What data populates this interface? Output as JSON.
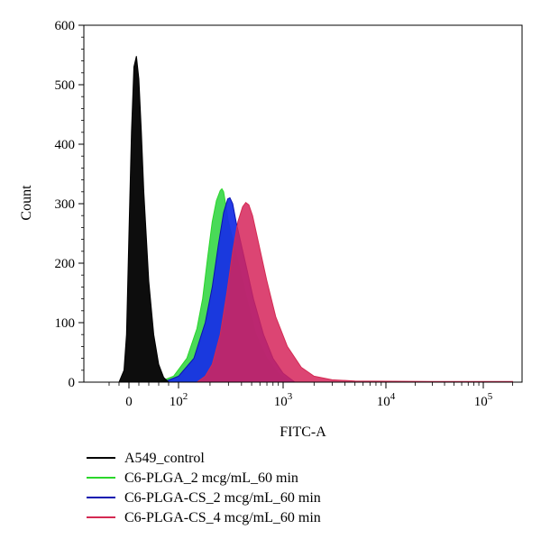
{
  "chart_data": {
    "type": "area",
    "title": "",
    "xlabel": "FITC-A",
    "ylabel": "Count",
    "x_scale": "biexponential (log above 10^2)",
    "ylim": [
      0,
      600
    ],
    "yticks": [
      "0",
      "100",
      "200",
      "300",
      "400",
      "500",
      "600"
    ],
    "xticks": [
      {
        "base": "0",
        "exp": ""
      },
      {
        "base": "10",
        "exp": "2"
      },
      {
        "base": "10",
        "exp": "3"
      },
      {
        "base": "10",
        "exp": "4"
      },
      {
        "base": "10",
        "exp": "5"
      }
    ],
    "grid": false,
    "legend_position": "bottom",
    "series": [
      {
        "name": "A549_control",
        "color": "#000000",
        "fill": "#000000",
        "x": [
          -20,
          -10,
          -5,
          0,
          5,
          10,
          15,
          20,
          25,
          30,
          40,
          50,
          60,
          70,
          80
        ],
        "y": [
          0,
          20,
          80,
          250,
          420,
          530,
          548,
          510,
          420,
          320,
          170,
          80,
          30,
          8,
          0
        ]
      },
      {
        "name": "C6-PLGA_2 mcg/mL_60 min",
        "color": "#2bd62b",
        "fill": "#3fd84f",
        "x": [
          60,
          90,
          120,
          150,
          170,
          190,
          210,
          230,
          250,
          260,
          270,
          285,
          300,
          330,
          380,
          450,
          550,
          700,
          900,
          1200
        ],
        "y": [
          0,
          10,
          40,
          90,
          140,
          210,
          270,
          305,
          322,
          325,
          320,
          295,
          270,
          240,
          195,
          140,
          80,
          40,
          15,
          0
        ]
      },
      {
        "name": "C6-PLGA-CS_2 mcg/mL_60 min",
        "color": "#0a12b0",
        "fill": "#1830e6",
        "x": [
          70,
          100,
          140,
          180,
          210,
          240,
          270,
          295,
          310,
          330,
          355,
          400,
          450,
          520,
          650,
          800,
          1000,
          1300
        ],
        "y": [
          0,
          10,
          40,
          100,
          160,
          230,
          285,
          308,
          310,
          300,
          270,
          230,
          190,
          140,
          80,
          40,
          15,
          0
        ]
      },
      {
        "name": "C6-PLGA-CS_4 mcg/mL_60 min",
        "color": "#d42a52",
        "fill": "#d6245a",
        "x": [
          150,
          180,
          210,
          250,
          290,
          330,
          370,
          410,
          440,
          470,
          510,
          580,
          700,
          850,
          1100,
          1500,
          2000,
          3000,
          5000,
          30000,
          200000
        ],
        "y": [
          0,
          10,
          30,
          80,
          150,
          220,
          270,
          295,
          302,
          298,
          280,
          235,
          170,
          110,
          60,
          25,
          10,
          4,
          2,
          1,
          1
        ]
      }
    ]
  }
}
